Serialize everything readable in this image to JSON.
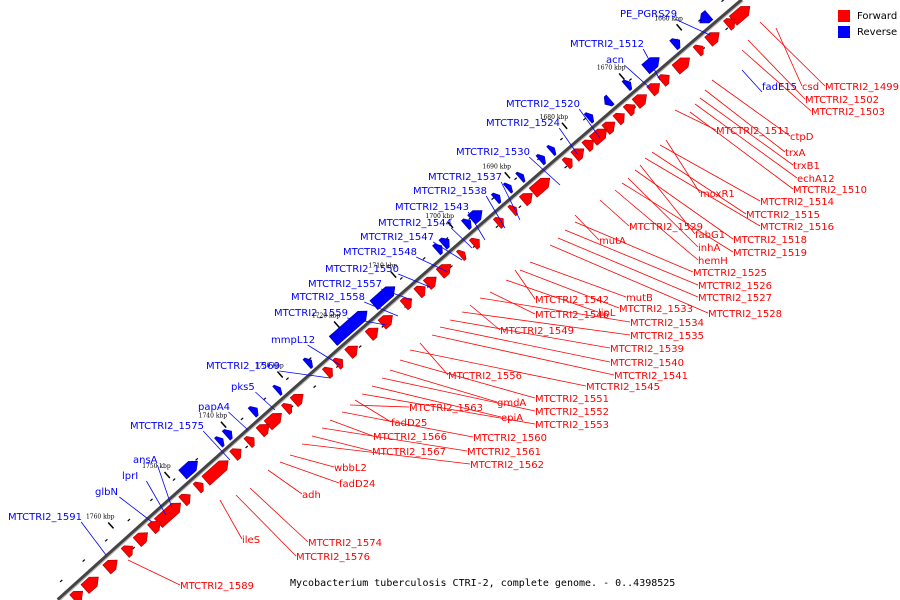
{
  "caption": "Mycobacterium tuberculosis CTRI-2, complete genome. - 0..4398525",
  "legend": [
    {
      "label": "Forward",
      "color": "#ff0000"
    },
    {
      "label": "Reverse",
      "color": "#0000ff"
    }
  ],
  "colors": {
    "forward": "#ff0000",
    "reverse": "#0000ff",
    "backbone": "#000000"
  },
  "ticks": [
    "1660 kbp",
    "1670 kbp",
    "1680 kbp",
    "1690 kbp",
    "1700 kbp",
    "1710 kbp",
    "1720 kbp",
    "1730 kbp",
    "1740 kbp",
    "1750 kbp",
    "1760 kbp"
  ],
  "reverse_labels": [
    "PE_PGRS29",
    "MTCTRI2_1512",
    "acn",
    "fadE15",
    "MTCTRI2_1520",
    "MTCTRI2_1524",
    "MTCTRI2_1530",
    "MTCTRI2_1537",
    "MTCTRI2_1538",
    "MTCTRI2_1543",
    "MTCTRI2_1544",
    "MTCTRI2_1547",
    "MTCTRI2_1548",
    "MTCTRI2_1550",
    "MTCTRI2_1557",
    "MTCTRI2_1558",
    "MTCTRI2_1559",
    "mmpL12",
    "MTCTRI2_1569",
    "pks5",
    "papA4",
    "MTCTRI2_1575",
    "ansA",
    "lprI",
    "glbN",
    "MTCTRI2_1591"
  ],
  "forward_labels": [
    "csd",
    "MTCTRI2_1499",
    "MTCTRI2_1502",
    "MTCTRI2_1503",
    "MTCTRI2_1511",
    "ctpD",
    "trxA",
    "trxB1",
    "echA12",
    "MTCTRI2_1510",
    "moxR1",
    "MTCTRI2_1514",
    "MTCTRI2_1515",
    "MTCTRI2_1516",
    "fabG1",
    "MTCTRI2_1518",
    "inhA",
    "MTCTRI2_1519",
    "hemH",
    "MTCTRI2_1529",
    "mutA",
    "MTCTRI2_1525",
    "MTCTRI2_1526",
    "MTCTRI2_1527",
    "MTCTRI2_1528",
    "mutB",
    "MTCTRI2_1542",
    "MTCTRI2_1533",
    "lipL",
    "MTCTRI2_1546",
    "MTCTRI2_1534",
    "MTCTRI2_1549",
    "MTCTRI2_1535",
    "MTCTRI2_1539",
    "MTCTRI2_1540",
    "MTCTRI2_1541",
    "MTCTRI2_1556",
    "MTCTRI2_1545",
    "MTCTRI2_1551",
    "gmdA",
    "MTCTRI2_1552",
    "epiA",
    "MTCTRI2_1553",
    "fadD25",
    "MTCTRI2_1563",
    "MTCTRI2_1560",
    "MTCTRI2_1566",
    "MTCTRI2_1561",
    "MTCTRI2_1567",
    "MTCTRI2_1562",
    "wbbL2",
    "fadD24",
    "adh",
    "ileS",
    "MTCTRI2_1574",
    "MTCTRI2_1576",
    "MTCTRI2_1589"
  ]
}
